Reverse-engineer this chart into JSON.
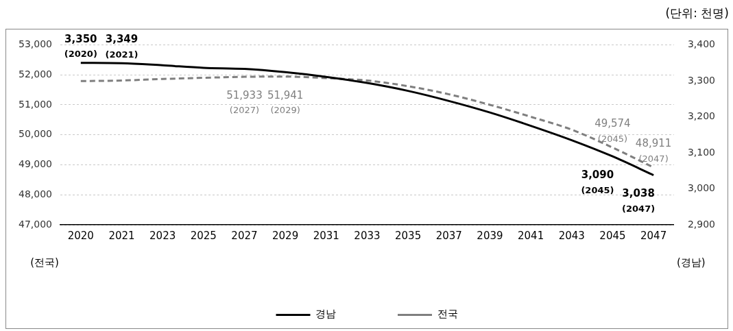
{
  "chart_data": {
    "type": "line",
    "annotations": [
      "(단위: 천명)"
    ],
    "ylabel": "(전국)",
    "y2label": "(경남)",
    "categories": [
      "2020",
      "2021",
      "2023",
      "2025",
      "2027",
      "2029",
      "2031",
      "2033",
      "2035",
      "2037",
      "2039",
      "2041",
      "2043",
      "2045",
      "2047"
    ],
    "series": [
      {
        "name": "경남",
        "color": "#000000",
        "axis": "y2",
        "line_style": "solid",
        "values": [
          3350,
          3349,
          3343,
          3336,
          3333,
          3324,
          3311,
          3294,
          3272,
          3244,
          3212,
          3175,
          3135,
          3090,
          3038
        ],
        "value_labels": [
          "3,350\n(2020)",
          "3,349\n(2021)",
          null,
          null,
          null,
          null,
          null,
          null,
          null,
          null,
          null,
          null,
          null,
          "3,090\n(2045)",
          "3,038\n(2047)"
        ]
      },
      {
        "name": "전국",
        "color": "#7f7f7f",
        "axis": "y",
        "line_style": "dashed",
        "values": [
          51790,
          51810,
          51860,
          51900,
          51933,
          51941,
          51890,
          51810,
          51620,
          51350,
          51000,
          50600,
          50170,
          49574,
          48911
        ],
        "value_labels": [
          null,
          null,
          null,
          null,
          "51,933\n(2027)",
          "51,941\n(2029)",
          null,
          null,
          null,
          null,
          null,
          null,
          null,
          "49,574\n(2045)",
          "48,911\n(2047)"
        ]
      }
    ],
    "ylim": [
      47000,
      53000
    ],
    "yticks": [
      {
        "value": 47000,
        "label": "47,000"
      },
      {
        "value": 48000,
        "label": "48,000"
      },
      {
        "value": 49000,
        "label": "49,000"
      },
      {
        "value": 50000,
        "label": "50,000"
      },
      {
        "value": 51000,
        "label": "51,000"
      },
      {
        "value": 52000,
        "label": "52,000"
      },
      {
        "value": 53000,
        "label": "53,000"
      }
    ],
    "y2lim": [
      2900,
      3400
    ],
    "y2ticks": [
      {
        "value": 2900,
        "label": "2,900"
      },
      {
        "value": 3000,
        "label": "3,000"
      },
      {
        "value": 3100,
        "label": "3,100"
      },
      {
        "value": 3200,
        "label": "3,200"
      },
      {
        "value": 3300,
        "label": "3,300"
      },
      {
        "value": 3400,
        "label": "3,400"
      }
    ],
    "grid": "y",
    "legend": "bottom",
    "marker": "none"
  }
}
